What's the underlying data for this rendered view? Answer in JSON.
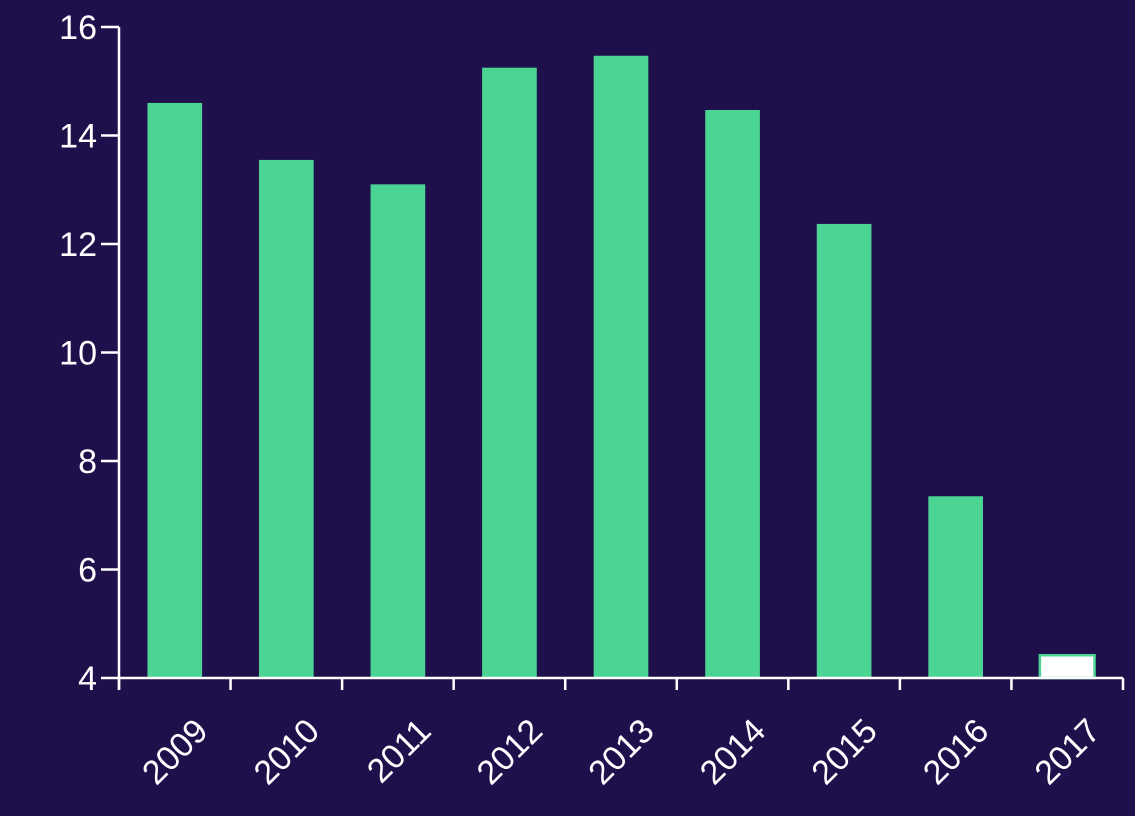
{
  "colors": {
    "background": "#1f104c",
    "bar": "#4cd494",
    "highlight_bar": "#ffffff",
    "highlight_bar_border": "#4cd494",
    "axis": "#ffffff",
    "text": "#ffffff"
  },
  "chart_data": {
    "type": "bar",
    "title": "",
    "xlabel": "",
    "ylabel": "",
    "categories": [
      "2009",
      "2010",
      "2011",
      "2012",
      "2013",
      "2014",
      "2015",
      "2016",
      "2017"
    ],
    "values": [
      14.6,
      13.55,
      13.1,
      15.25,
      15.47,
      14.47,
      12.37,
      7.35,
      4.42
    ],
    "highlighted_categories": [
      "2017"
    ],
    "ylim": [
      4,
      16
    ],
    "yticks": [
      4,
      6,
      8,
      10,
      12,
      14,
      16
    ],
    "ytick_labels": [
      "4",
      "6",
      "8",
      "10",
      "12",
      "14",
      "16"
    ],
    "xtick_rotation_deg": -45,
    "grid": false,
    "legend": "none"
  }
}
